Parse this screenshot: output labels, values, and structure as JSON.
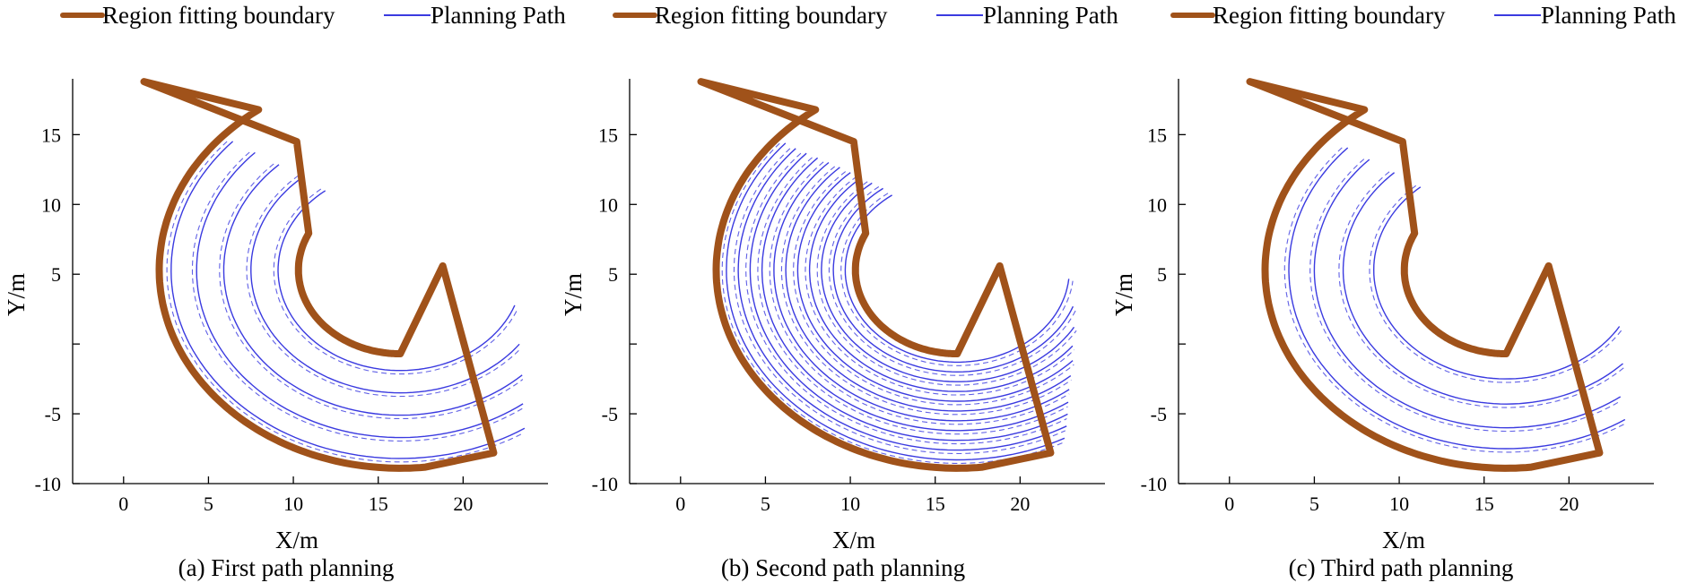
{
  "colors": {
    "boundary": "#A0521A",
    "path": "#3A3AE0",
    "axis": "#000000"
  },
  "legend": {
    "boundary_label": "Region fitting boundary",
    "path_label": "Planning Path"
  },
  "chart_data": [
    {
      "type": "line",
      "caption": "(a) First path planning",
      "xlabel": "X/m",
      "ylabel": "Y/m",
      "xlim": [
        -3,
        25
      ],
      "ylim": [
        -10,
        19
      ],
      "xticks": [
        0,
        5,
        10,
        15,
        20
      ],
      "yticks": [
        -10,
        -5,
        0,
        5,
        10,
        15
      ],
      "ytick_labels": [
        "-10",
        "-5",
        "",
        "5",
        "10",
        "15"
      ],
      "region_boundary": {
        "center": [
          16.3,
          5.3
        ],
        "inner_radius": 6.0,
        "outer_radius": 14.2,
        "angle_start_deg": 92,
        "angle_end_deg": 256,
        "corners": [
          [
            1.2,
            18.8
          ],
          [
            10.2,
            14.5
          ],
          [
            18.8,
            5.6
          ],
          [
            21.8,
            -7.8
          ]
        ]
      },
      "path_radii": [
        7.2,
        8.8,
        10.4,
        12.0,
        13.5
      ],
      "path_endpoints": [
        {
          "top": [
            8.6,
            15.2
          ],
          "bottom": [
            19.5,
            4.1
          ]
        },
        {
          "top": [
            7.4,
            15.7
          ],
          "bottom": [
            20.0,
            2.5
          ]
        },
        {
          "top": [
            5.6,
            16.6
          ],
          "bottom": [
            20.5,
            0.9
          ]
        },
        {
          "top": [
            4.0,
            17.4
          ],
          "bottom": [
            20.9,
            -0.8
          ]
        },
        {
          "top": [
            2.6,
            18.1
          ],
          "bottom": [
            21.4,
            -2.6
          ]
        }
      ]
    },
    {
      "type": "line",
      "caption": "(b) Second path planning",
      "xlabel": "X/m",
      "ylabel": "Y/m",
      "xlim": [
        -3,
        25
      ],
      "ylim": [
        -10,
        19
      ],
      "xticks": [
        0,
        5,
        10,
        15,
        20
      ],
      "yticks": [
        -10,
        -5,
        0,
        5,
        10,
        15
      ],
      "ytick_labels": [
        "-10",
        "-5",
        "",
        "5",
        "10",
        "15"
      ],
      "region_boundary": {
        "center": [
          16.3,
          5.3
        ],
        "inner_radius": 6.0,
        "outer_radius": 14.2,
        "angle_start_deg": 92,
        "angle_end_deg": 256,
        "corners": [
          [
            1.2,
            18.8
          ],
          [
            10.2,
            14.5
          ],
          [
            18.8,
            5.6
          ],
          [
            21.8,
            -7.8
          ]
        ]
      },
      "path_radii": [
        6.6,
        7.3,
        8.0,
        8.7,
        9.4,
        10.1,
        10.8,
        11.5,
        12.2,
        12.9,
        13.6
      ],
      "path_endpoints": [
        {
          "top": [
            9.5,
            14.8
          ],
          "bottom": [
            19.4,
            5.0
          ]
        },
        {
          "top": [
            8.9,
            15.2
          ],
          "bottom": [
            19.7,
            4.0
          ]
        },
        {
          "top": [
            8.0,
            15.6
          ],
          "bottom": [
            20.0,
            3.1
          ]
        },
        {
          "top": [
            7.2,
            16.0
          ],
          "bottom": [
            20.3,
            2.1
          ]
        },
        {
          "top": [
            6.3,
            16.4
          ],
          "bottom": [
            20.6,
            1.2
          ]
        },
        {
          "top": [
            5.5,
            16.8
          ],
          "bottom": [
            20.8,
            0.2
          ]
        },
        {
          "top": [
            4.6,
            17.2
          ],
          "bottom": [
            21.0,
            -0.8
          ]
        },
        {
          "top": [
            3.7,
            17.6
          ],
          "bottom": [
            21.2,
            -1.8
          ]
        },
        {
          "top": [
            2.8,
            18.0
          ],
          "bottom": [
            21.4,
            -2.8
          ]
        },
        {
          "top": [
            2.1,
            18.3
          ],
          "bottom": [
            21.6,
            -3.9
          ]
        },
        {
          "top": [
            1.6,
            18.5
          ],
          "bottom": [
            21.7,
            -5.0
          ]
        }
      ]
    },
    {
      "type": "line",
      "caption": "(c) Third path planning",
      "xlabel": "X/m",
      "ylabel": "Y/m",
      "xlim": [
        -3,
        25
      ],
      "ylim": [
        -10,
        19
      ],
      "xticks": [
        0,
        5,
        10,
        15,
        20
      ],
      "yticks": [
        -10,
        -5,
        0,
        5,
        10,
        15
      ],
      "ytick_labels": [
        "-10",
        "-5",
        "",
        "5",
        "10",
        "15"
      ],
      "region_boundary": {
        "center": [
          16.3,
          5.3
        ],
        "inner_radius": 6.0,
        "outer_radius": 14.2,
        "angle_start_deg": 92,
        "angle_end_deg": 256,
        "corners": [
          [
            1.2,
            18.8
          ],
          [
            10.2,
            14.5
          ],
          [
            18.8,
            5.6
          ],
          [
            21.8,
            -7.8
          ]
        ]
      },
      "path_radii": [
        7.8,
        9.6,
        11.3,
        12.8
      ],
      "path_endpoints": [
        {
          "top": [
            7.9,
            15.2
          ],
          "bottom": [
            19.6,
            3.3
          ]
        },
        {
          "top": [
            6.1,
            16.1
          ],
          "bottom": [
            20.2,
            1.5
          ]
        },
        {
          "top": [
            4.6,
            16.8
          ],
          "bottom": [
            20.6,
            -0.5
          ]
        },
        {
          "top": [
            3.2,
            17.6
          ],
          "bottom": [
            21.2,
            -2.2
          ]
        }
      ]
    }
  ]
}
